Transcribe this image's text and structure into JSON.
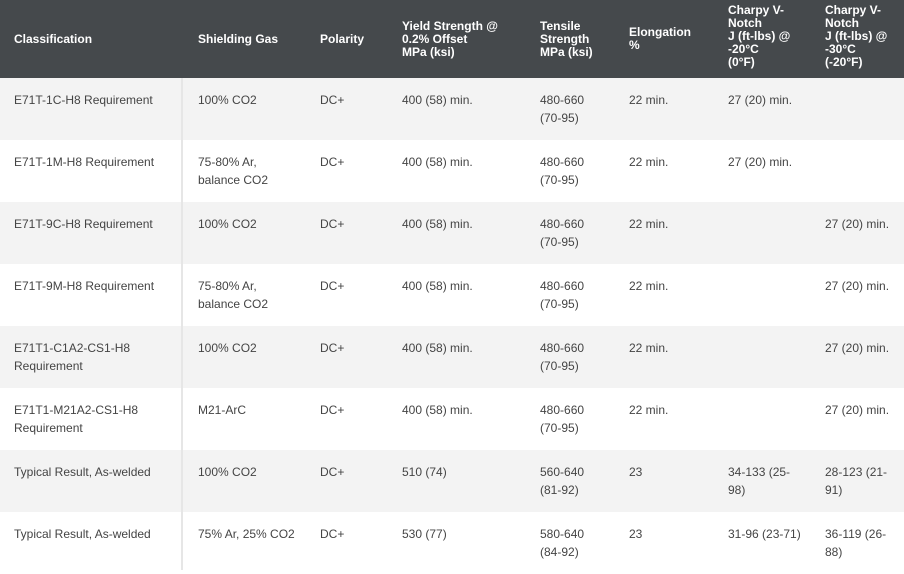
{
  "table": {
    "headers": [
      "Classification",
      "Shielding Gas",
      "Polarity",
      "Yield Strength @\n0.2% Offset\nMPa (ksi)",
      "Tensile\nStrength\nMPa (ksi)",
      "Elongation\n%",
      "Charpy V-\nNotch\nJ (ft-lbs) @\n-20°C\n(0°F)",
      "Charpy V-\nNotch\nJ (ft-lbs) @\n-30°C\n(-20°F)"
    ],
    "rows": [
      [
        "E71T-1C-H8 Requirement",
        "100% CO2",
        "DC+",
        "400 (58) min.",
        "480-660 (70-95)",
        "22 min.",
        "27 (20) min.",
        ""
      ],
      [
        "E71T-1M-H8 Requirement",
        "75-80% Ar, balance CO2",
        "DC+",
        "400 (58) min.",
        "480-660 (70-95)",
        "22 min.",
        "27 (20) min.",
        ""
      ],
      [
        "E71T-9C-H8 Requirement",
        "100% CO2",
        "DC+",
        "400 (58) min.",
        "480-660 (70-95)",
        "22 min.",
        "",
        "27 (20) min."
      ],
      [
        "E71T-9M-H8 Requirement",
        "75-80% Ar, balance CO2",
        "DC+",
        "400 (58) min.",
        "480-660 (70-95)",
        "22 min.",
        "",
        "27 (20) min."
      ],
      [
        "E71T1-C1A2-CS1-H8 Requirement",
        "100% CO2",
        "DC+",
        "400 (58) min.",
        "480-660 (70-95)",
        "22 min.",
        "",
        "27 (20) min."
      ],
      [
        "E71T1-M21A2-CS1-H8 Requirement",
        "M21-ArC",
        "DC+",
        "400 (58) min.",
        "480-660 (70-95)",
        "22 min.",
        "",
        "27 (20) min."
      ],
      [
        "Typical Result, As-welded",
        "100% CO2",
        "DC+",
        "510 (74)",
        "560-640 (81-92)",
        "23",
        "34-133 (25-98)",
        "28-123 (21-91)"
      ],
      [
        "Typical Result, As-welded",
        "75% Ar, 25% CO2",
        "DC+",
        "530 (77)",
        "580-640 (84-92)",
        "23",
        "31-96 (23-71)",
        "36-119 (26-88)"
      ]
    ]
  }
}
